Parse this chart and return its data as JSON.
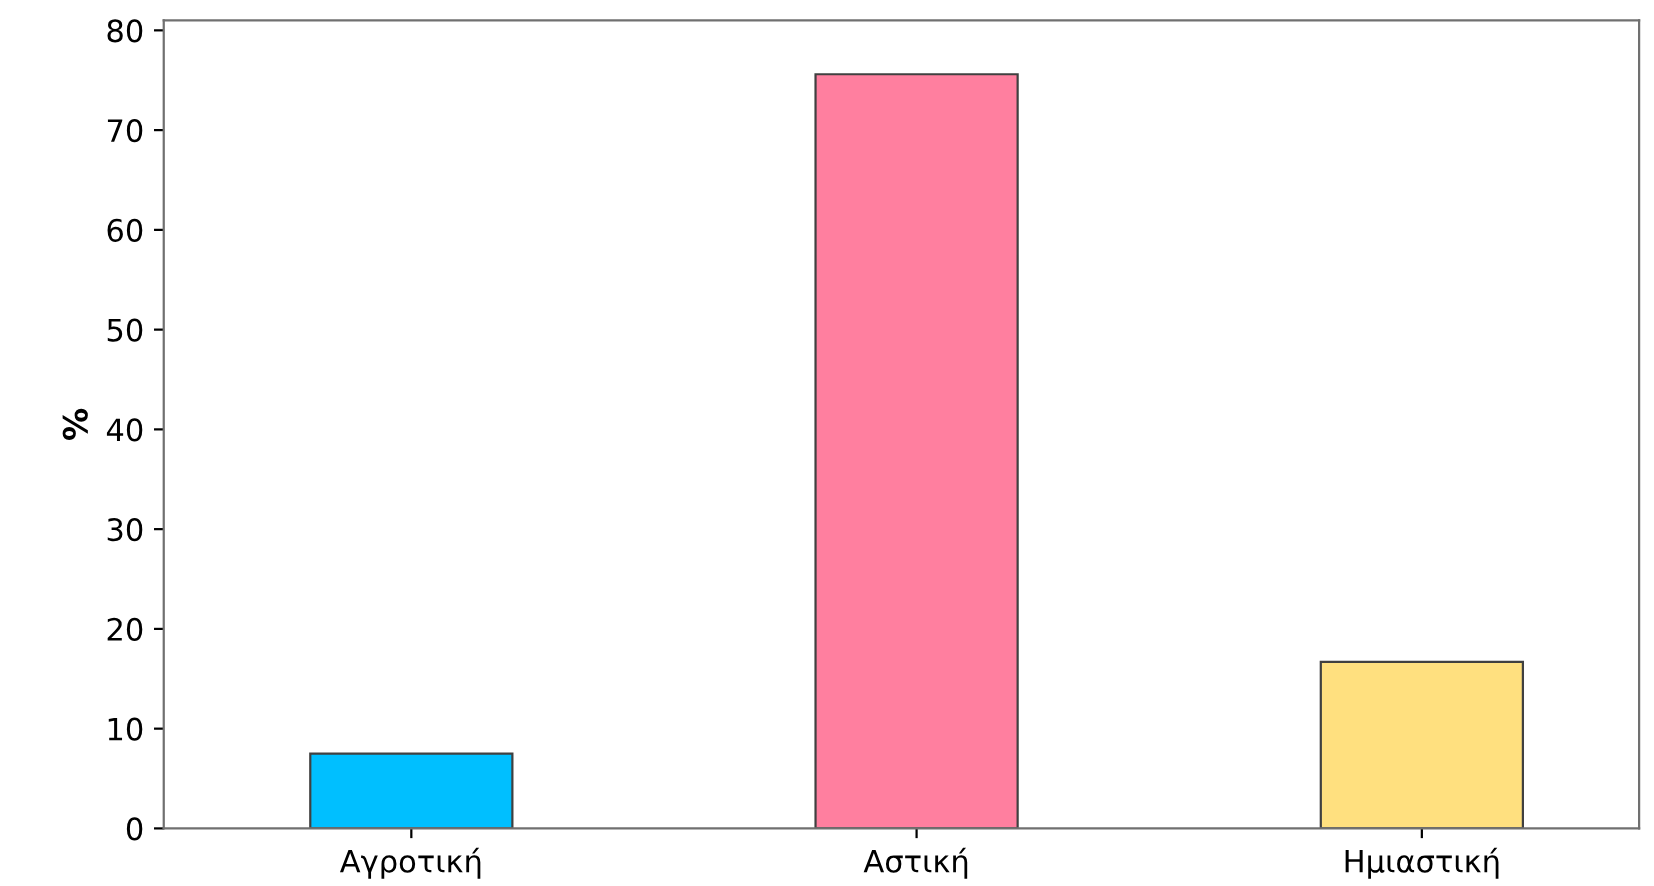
{
  "chart_data": {
    "type": "bar",
    "ylabel": "%",
    "categories": [
      "Αγροτική",
      "Αστική",
      "Ημιαστική"
    ],
    "values": [
      7.5,
      75.6,
      16.7
    ],
    "colors": [
      "#00bfff",
      "#ff7f9f",
      "#ffe07f"
    ],
    "ylim": [
      0,
      81
    ],
    "yticks": [
      0,
      10,
      20,
      30,
      40,
      50,
      60,
      70,
      80
    ],
    "grid": false,
    "legend": false
  }
}
